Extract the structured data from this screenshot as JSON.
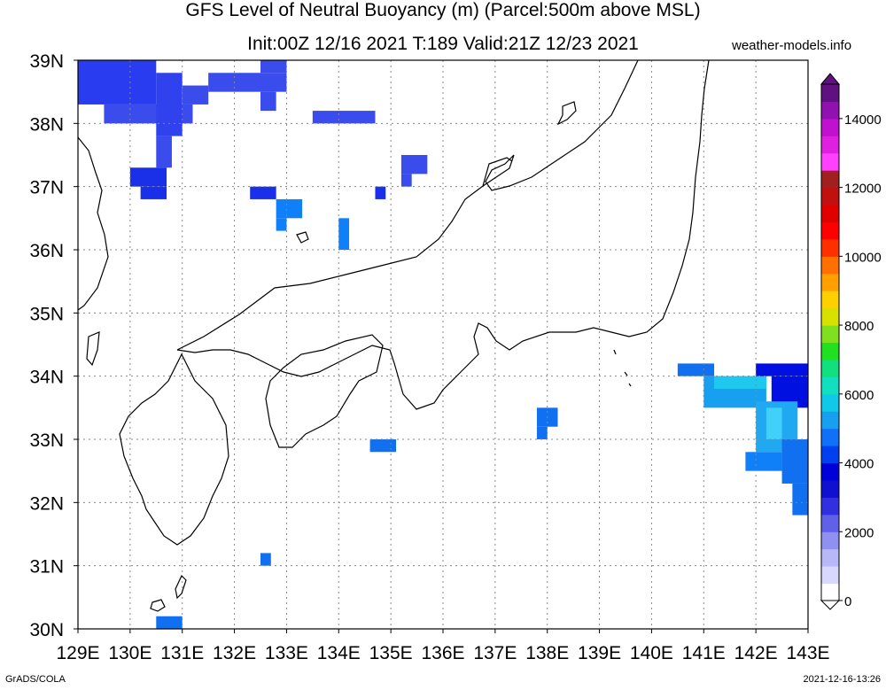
{
  "title_line1": "GFS Level of Neutral Buoyancy (m) (Parcel:500m above MSL)",
  "title_line2": "Init:00Z 12/16 2021 T:189 Valid:21Z 12/23 2021",
  "site": "weather-models.info",
  "footer_left": "GrADS/COLA",
  "footer_right": "2021-12-16-13:26",
  "lon_labels": [
    "129E",
    "130E",
    "131E",
    "132E",
    "133E",
    "134E",
    "135E",
    "136E",
    "137E",
    "138E",
    "139E",
    "140E",
    "141E",
    "142E",
    "143E"
  ],
  "lat_labels": [
    "39N",
    "38N",
    "37N",
    "36N",
    "35N",
    "34N",
    "33N",
    "32N",
    "31N",
    "30N"
  ],
  "colorbar": {
    "labels": [
      "0",
      "2000",
      "4000",
      "6000",
      "8000",
      "10000",
      "12000",
      "14000"
    ],
    "colors": [
      "#ffffff",
      "#d8d8ff",
      "#b8b8f8",
      "#9090f0",
      "#6060e8",
      "#3030e0",
      "#1010d0",
      "#0000d8",
      "#0040f0",
      "#1070f8",
      "#18a0f0",
      "#10c8e8",
      "#10e0c0",
      "#10e080",
      "#20e020",
      "#80e020",
      "#d8e000",
      "#ffd000",
      "#ffa000",
      "#ff7000",
      "#ff3000",
      "#ff0000",
      "#e00000",
      "#c01010",
      "#a02020",
      "#ff40ff",
      "#e020e0",
      "#c010d0",
      "#9010b0",
      "#601080"
    ]
  },
  "fields": [
    {
      "lon0": 129.0,
      "lat0": 38.3,
      "lon1": 130.5,
      "lat1": 39.0,
      "color": "#2a3cf0"
    },
    {
      "lon0": 129.5,
      "lat0": 38.0,
      "lon1": 131.2,
      "lat1": 38.3,
      "color": "#3a4cec"
    },
    {
      "lon0": 130.5,
      "lat0": 37.8,
      "lon1": 131.0,
      "lat1": 38.8,
      "color": "#2f42ee"
    },
    {
      "lon0": 131.0,
      "lat0": 38.3,
      "lon1": 131.5,
      "lat1": 38.6,
      "color": "#3a4cec"
    },
    {
      "lon0": 131.5,
      "lat0": 38.5,
      "lon1": 133.0,
      "lat1": 38.8,
      "color": "#3a4cec"
    },
    {
      "lon0": 132.5,
      "lat0": 38.8,
      "lon1": 133.0,
      "lat1": 39.0,
      "color": "#3a4cec"
    },
    {
      "lon0": 132.5,
      "lat0": 38.2,
      "lon1": 132.8,
      "lat1": 38.5,
      "color": "#3a4cec"
    },
    {
      "lon0": 130.5,
      "lat0": 37.3,
      "lon1": 130.8,
      "lat1": 37.8,
      "color": "#3a4cec"
    },
    {
      "lon0": 130.0,
      "lat0": 37.0,
      "lon1": 130.7,
      "lat1": 37.3,
      "color": "#1a30e8"
    },
    {
      "lon0": 130.2,
      "lat0": 36.8,
      "lon1": 130.7,
      "lat1": 37.0,
      "color": "#1a30e8"
    },
    {
      "lon0": 133.5,
      "lat0": 38.0,
      "lon1": 134.7,
      "lat1": 38.2,
      "color": "#3a4cec"
    },
    {
      "lon0": 135.2,
      "lat0": 37.2,
      "lon1": 135.7,
      "lat1": 37.5,
      "color": "#3a4cec"
    },
    {
      "lon0": 135.2,
      "lat0": 37.0,
      "lon1": 135.4,
      "lat1": 37.2,
      "color": "#3a4cec"
    },
    {
      "lon0": 132.3,
      "lat0": 36.8,
      "lon1": 132.8,
      "lat1": 37.0,
      "color": "#1a30e8"
    },
    {
      "lon0": 132.8,
      "lat0": 36.5,
      "lon1": 133.3,
      "lat1": 36.8,
      "color": "#1080f8"
    },
    {
      "lon0": 132.8,
      "lat0": 36.3,
      "lon1": 133.0,
      "lat1": 36.5,
      "color": "#1080f8"
    },
    {
      "lon0": 134.0,
      "lat0": 36.0,
      "lon1": 134.2,
      "lat1": 36.5,
      "color": "#1080f8"
    },
    {
      "lon0": 134.7,
      "lat0": 36.8,
      "lon1": 134.9,
      "lat1": 37.0,
      "color": "#1a30e8"
    },
    {
      "lon0": 134.6,
      "lat0": 32.8,
      "lon1": 135.1,
      "lat1": 33.0,
      "color": "#1070f0"
    },
    {
      "lon0": 137.8,
      "lat0": 33.2,
      "lon1": 138.2,
      "lat1": 33.5,
      "color": "#1070f0"
    },
    {
      "lon0": 137.8,
      "lat0": 33.0,
      "lon1": 138.0,
      "lat1": 33.2,
      "color": "#1070f0"
    },
    {
      "lon0": 140.5,
      "lat0": 34.0,
      "lon1": 141.2,
      "lat1": 34.2,
      "color": "#1070f0"
    },
    {
      "lon0": 141.0,
      "lat0": 33.5,
      "lon1": 142.2,
      "lat1": 34.0,
      "color": "#18a0f0"
    },
    {
      "lon0": 141.2,
      "lat0": 33.8,
      "lon1": 142.2,
      "lat1": 34.0,
      "color": "#20c8f0"
    },
    {
      "lon0": 142.0,
      "lat0": 34.0,
      "lon1": 143.0,
      "lat1": 34.2,
      "color": "#0010e0"
    },
    {
      "lon0": 142.3,
      "lat0": 33.5,
      "lon1": 143.0,
      "lat1": 34.0,
      "color": "#0010e0"
    },
    {
      "lon0": 142.0,
      "lat0": 32.8,
      "lon1": 142.8,
      "lat1": 33.6,
      "color": "#20a8f0"
    },
    {
      "lon0": 142.2,
      "lat0": 33.0,
      "lon1": 142.5,
      "lat1": 33.5,
      "color": "#40d0f8"
    },
    {
      "lon0": 141.8,
      "lat0": 32.5,
      "lon1": 142.5,
      "lat1": 32.8,
      "color": "#1080f8"
    },
    {
      "lon0": 142.5,
      "lat0": 32.3,
      "lon1": 143.0,
      "lat1": 33.0,
      "color": "#1070f0"
    },
    {
      "lon0": 142.7,
      "lat0": 31.8,
      "lon1": 143.0,
      "lat1": 32.3,
      "color": "#1070f0"
    },
    {
      "lon0": 132.5,
      "lat0": 31.0,
      "lon1": 132.7,
      "lat1": 31.2,
      "color": "#1070f0"
    },
    {
      "lon0": 130.5,
      "lat0": 30.0,
      "lon1": 131.0,
      "lat1": 30.2,
      "color": "#1070f0"
    }
  ]
}
